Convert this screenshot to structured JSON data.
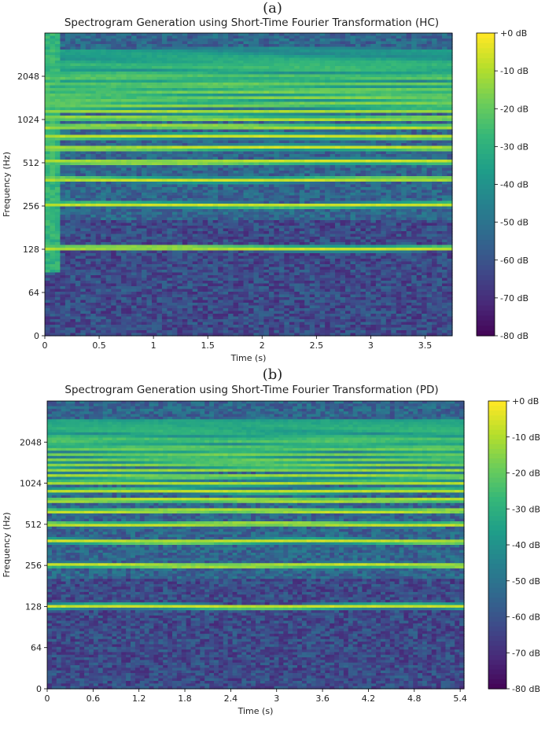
{
  "chart_data": [
    {
      "type": "heatmap",
      "panel_label": "(a)",
      "title": "Spectrogram Generation using Short-Time Fourier Transformation (HC)",
      "xlabel": "Time (s)",
      "ylabel": "Frequency (Hz)",
      "x_ticks": [
        "0",
        "0.5",
        "1",
        "1.5",
        "2",
        "2.5",
        "3",
        "3.5"
      ],
      "x_tick_values": [
        0,
        0.5,
        1,
        1.5,
        2,
        2.5,
        3,
        3.5
      ],
      "xlim": [
        0,
        3.75
      ],
      "y_scale": "symlog (base 2)",
      "y_ticks": [
        "0",
        "64",
        "128",
        "256",
        "512",
        "1024",
        "2048"
      ],
      "y_tick_values": [
        0,
        64,
        128,
        256,
        512,
        1024,
        2048
      ],
      "ylim": [
        0,
        4096
      ],
      "colorbar": {
        "labels": [
          "+0 dB",
          "-10 dB",
          "-20 dB",
          "-30 dB",
          "-40 dB",
          "-50 dB",
          "-60 dB",
          "-70 dB",
          "-80 dB"
        ],
        "values": [
          0,
          -10,
          -20,
          -30,
          -40,
          -50,
          -60,
          -70,
          -80
        ],
        "range": [
          -80,
          0
        ],
        "colormap": "viridis"
      },
      "harmonics_hz": [
        130,
        260,
        390,
        520,
        650,
        780,
        910,
        1040,
        1170,
        1300,
        1430,
        1560,
        1690,
        1820,
        1950,
        2080,
        2210,
        2340,
        2470,
        2600,
        2730,
        2860,
        2990,
        3120
      ],
      "grid": false
    },
    {
      "type": "heatmap",
      "panel_label": "(b)",
      "title": "Spectrogram Generation using Short-Time Fourier Transformation (PD)",
      "xlabel": "Time (s)",
      "ylabel": "Frequency (Hz)",
      "x_ticks": [
        "0",
        "0.6",
        "1.2",
        "1.8",
        "2.4",
        "3",
        "3.6",
        "4.2",
        "4.8",
        "5.4"
      ],
      "x_tick_values": [
        0,
        0.6,
        1.2,
        1.8,
        2.4,
        3.0,
        3.6,
        4.2,
        4.8,
        5.4
      ],
      "xlim": [
        0,
        5.45
      ],
      "y_scale": "symlog (base 2)",
      "y_ticks": [
        "0",
        "64",
        "128",
        "256",
        "512",
        "1024",
        "2048"
      ],
      "y_tick_values": [
        0,
        64,
        128,
        256,
        512,
        1024,
        2048
      ],
      "ylim": [
        0,
        4096
      ],
      "colorbar": {
        "labels": [
          "+0 dB",
          "-10 dB",
          "-20 dB",
          "-30 dB",
          "-40 dB",
          "-50 dB",
          "-60 dB",
          "-70 dB",
          "-80 dB"
        ],
        "values": [
          0,
          -10,
          -20,
          -30,
          -40,
          -50,
          -60,
          -70,
          -80
        ],
        "range": [
          -80,
          0
        ],
        "colormap": "viridis"
      },
      "harmonics_hz": [
        128,
        256,
        384,
        512,
        640,
        768,
        896,
        1024,
        1152,
        1280,
        1408,
        1536,
        1664,
        1792,
        1920,
        2048,
        2176,
        2304,
        2432,
        2560,
        2688,
        2816,
        2944
      ],
      "grid": false
    }
  ]
}
